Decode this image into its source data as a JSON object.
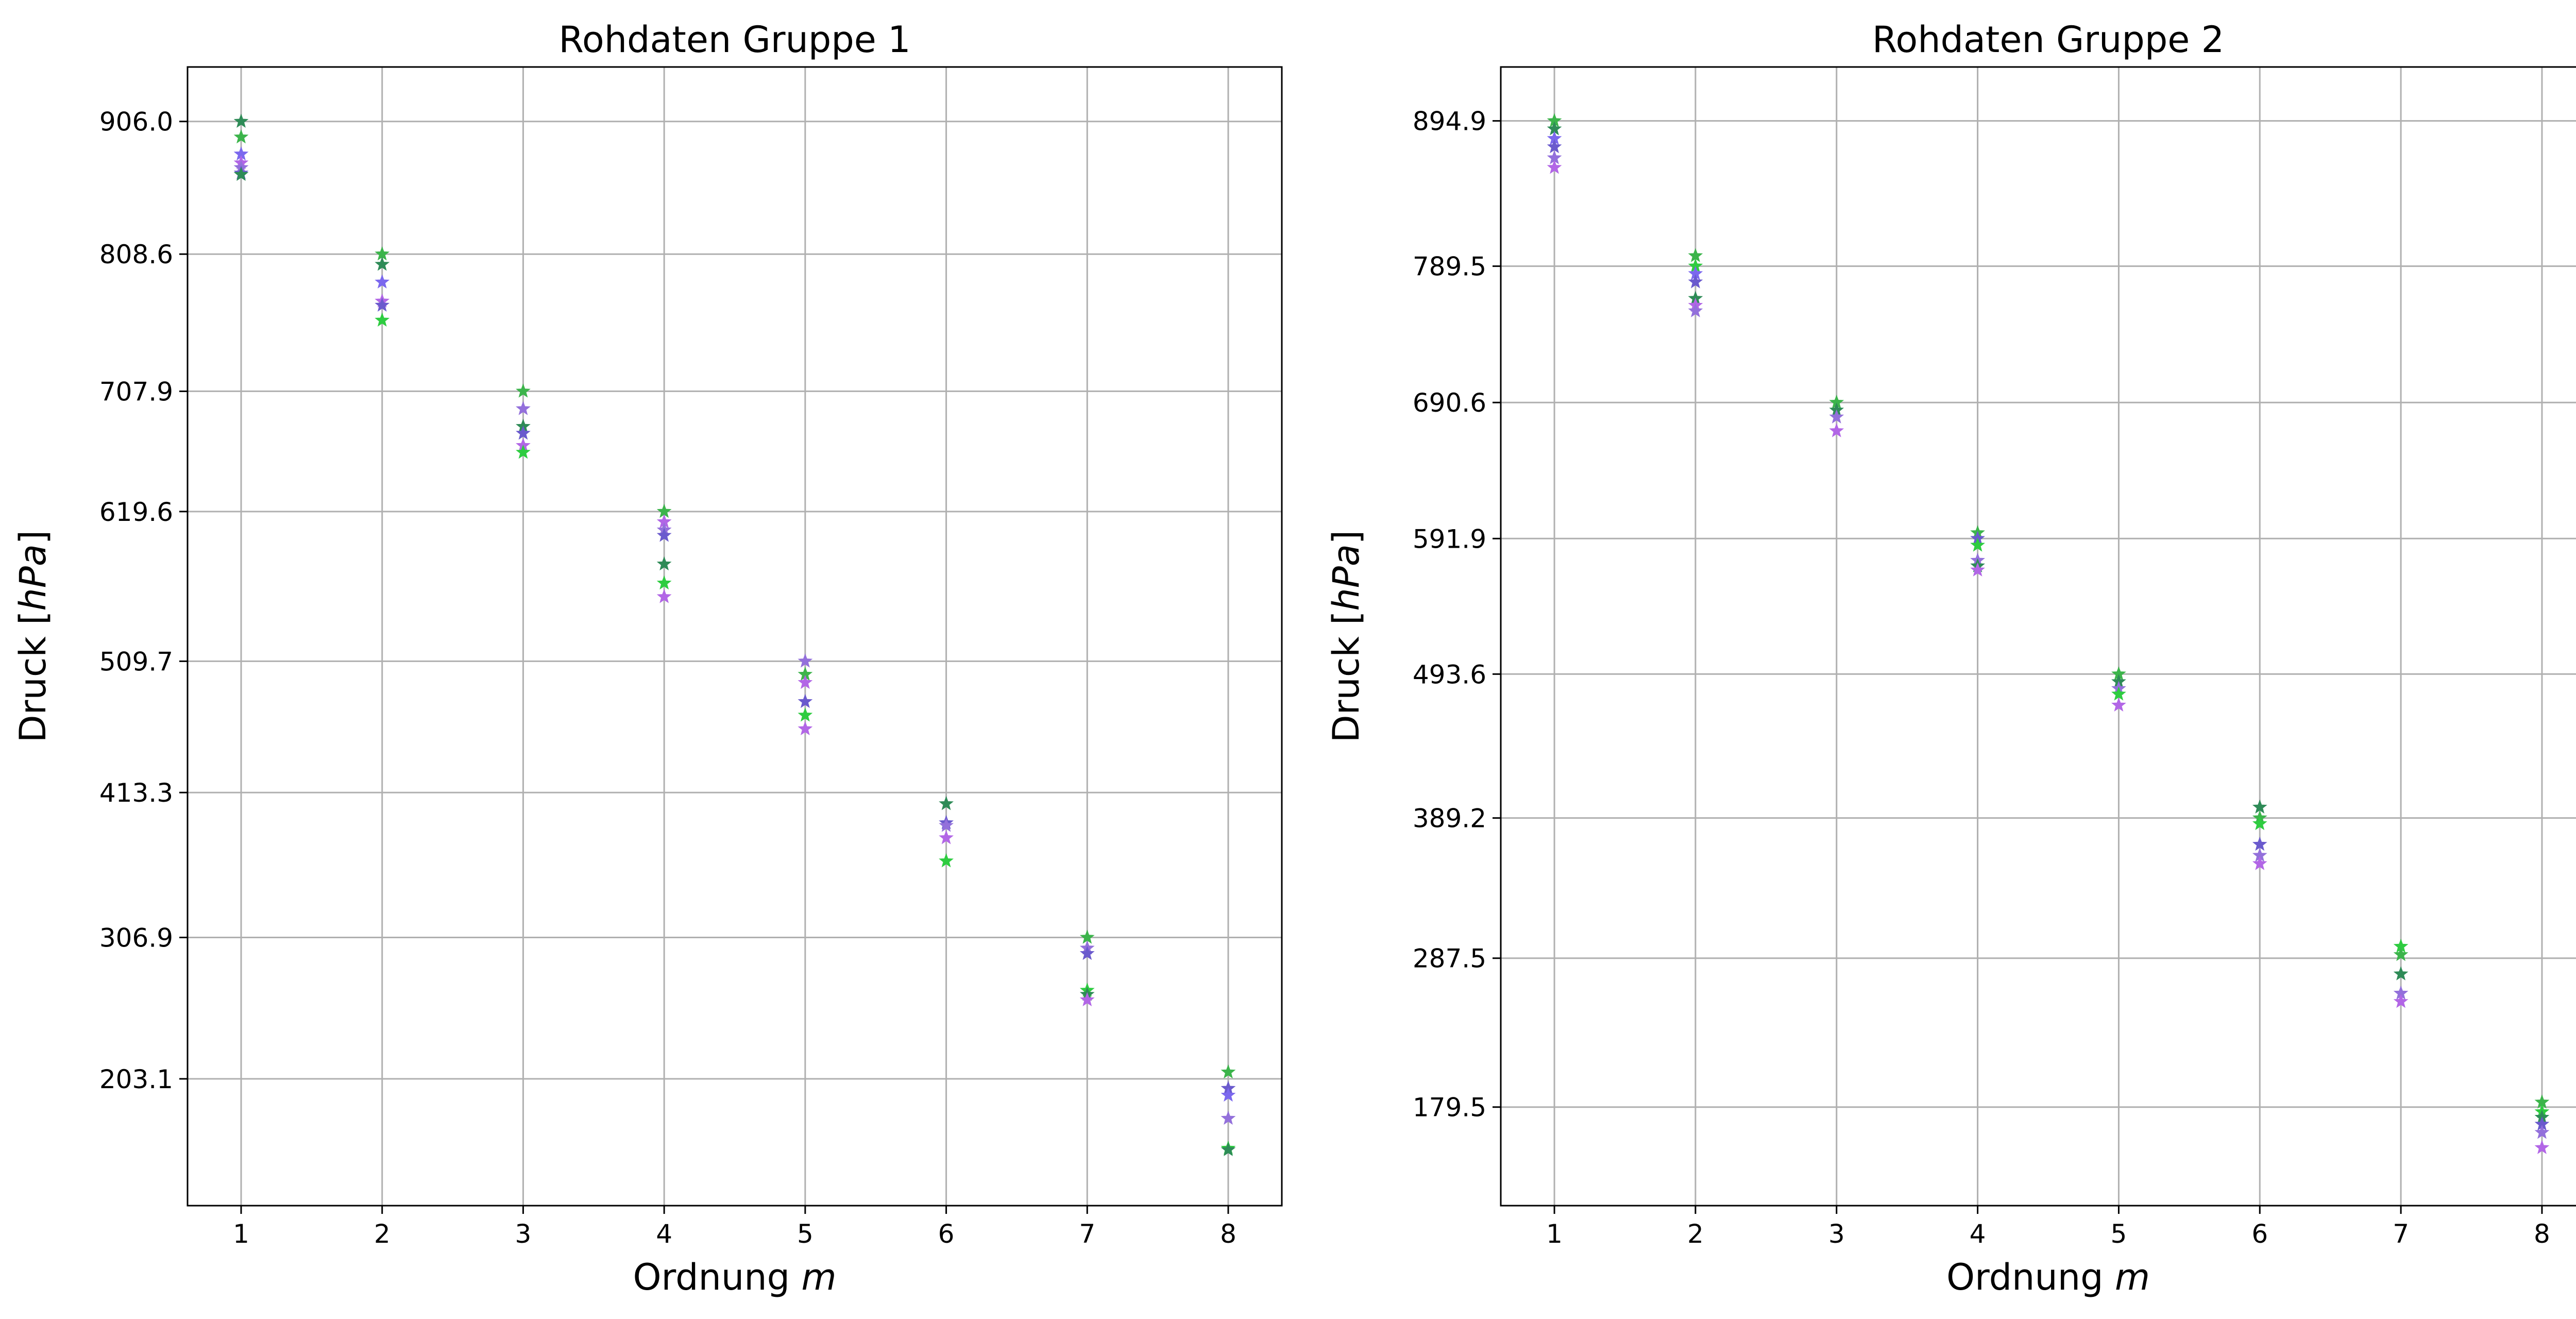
{
  "chart_data": [
    {
      "type": "scatter",
      "title": "Rohdaten Gruppe 1",
      "xlabel_text": "Ordnung",
      "xlabel_var": "m",
      "ylabel_text": "Druck [",
      "ylabel_unit": "hPa",
      "ylabel_close": "]",
      "x_ticks": [
        "1",
        "2",
        "3",
        "4",
        "5",
        "6",
        "7",
        "8"
      ],
      "y_ticks": [
        906.0,
        808.6,
        707.9,
        619.6,
        509.7,
        413.3,
        306.9,
        203.1
      ],
      "y_tick_labels": [
        "906.0",
        "808.6",
        "707.9",
        "619.6",
        "509.7",
        "413.3",
        "306.9",
        "203.1"
      ],
      "xlim": [
        0.62,
        8.38
      ],
      "ylim": [
        110,
        946
      ],
      "grid": true,
      "marker": "star",
      "points": [
        {
          "x": 1,
          "y": 906.0,
          "color": "#2e8b57"
        },
        {
          "x": 1,
          "y": 894.5,
          "color": "#3cb44b"
        },
        {
          "x": 1,
          "y": 882.0,
          "color": "#7b68ee"
        },
        {
          "x": 1,
          "y": 875.5,
          "color": "#b266e6"
        },
        {
          "x": 1,
          "y": 872.0,
          "color": "#9370db"
        },
        {
          "x": 1,
          "y": 868.0,
          "color": "#6a5acd"
        },
        {
          "x": 1,
          "y": 867.0,
          "color": "#2e8b57"
        },
        {
          "x": 2,
          "y": 808.6,
          "color": "#3cb44b"
        },
        {
          "x": 2,
          "y": 801.0,
          "color": "#2e8b57"
        },
        {
          "x": 2,
          "y": 788.0,
          "color": "#7b68ee"
        },
        {
          "x": 2,
          "y": 774.0,
          "color": "#b266e6"
        },
        {
          "x": 2,
          "y": 771.0,
          "color": "#6a5acd"
        },
        {
          "x": 2,
          "y": 760.0,
          "color": "#2ecc40"
        },
        {
          "x": 3,
          "y": 707.9,
          "color": "#3cb44b"
        },
        {
          "x": 3,
          "y": 695.0,
          "color": "#9370db"
        },
        {
          "x": 3,
          "y": 682.0,
          "color": "#2e8b57"
        },
        {
          "x": 3,
          "y": 677.0,
          "color": "#6a5acd"
        },
        {
          "x": 3,
          "y": 668.0,
          "color": "#b266e6"
        },
        {
          "x": 3,
          "y": 663.0,
          "color": "#2ecc40"
        },
        {
          "x": 4,
          "y": 619.6,
          "color": "#3cb44b"
        },
        {
          "x": 4,
          "y": 612.0,
          "color": "#b266e6"
        },
        {
          "x": 4,
          "y": 606.0,
          "color": "#9370db"
        },
        {
          "x": 4,
          "y": 602.0,
          "color": "#6a5acd"
        },
        {
          "x": 4,
          "y": 581.0,
          "color": "#2e8b57"
        },
        {
          "x": 4,
          "y": 567.0,
          "color": "#2ecc40"
        },
        {
          "x": 4,
          "y": 557.0,
          "color": "#b266e6"
        },
        {
          "x": 5,
          "y": 509.7,
          "color": "#9370db"
        },
        {
          "x": 5,
          "y": 500.0,
          "color": "#3cb44b"
        },
        {
          "x": 5,
          "y": 494.0,
          "color": "#b266e6"
        },
        {
          "x": 5,
          "y": 480.0,
          "color": "#6a5acd"
        },
        {
          "x": 5,
          "y": 470.0,
          "color": "#2ecc40"
        },
        {
          "x": 5,
          "y": 460.0,
          "color": "#b266e6"
        },
        {
          "x": 6,
          "y": 405.0,
          "color": "#2e8b57"
        },
        {
          "x": 6,
          "y": 391.0,
          "color": "#6a5acd"
        },
        {
          "x": 6,
          "y": 389.0,
          "color": "#9370db"
        },
        {
          "x": 6,
          "y": 380.0,
          "color": "#b266e6"
        },
        {
          "x": 6,
          "y": 363.0,
          "color": "#2ecc40"
        },
        {
          "x": 7,
          "y": 306.9,
          "color": "#3cb44b"
        },
        {
          "x": 7,
          "y": 299.0,
          "color": "#9370db"
        },
        {
          "x": 7,
          "y": 295.0,
          "color": "#6a5acd"
        },
        {
          "x": 7,
          "y": 268.0,
          "color": "#2ecc40"
        },
        {
          "x": 7,
          "y": 265.0,
          "color": "#2e8b57"
        },
        {
          "x": 7,
          "y": 261.0,
          "color": "#b266e6"
        },
        {
          "x": 8,
          "y": 208.0,
          "color": "#3cb44b"
        },
        {
          "x": 8,
          "y": 196.0,
          "color": "#6a5acd"
        },
        {
          "x": 8,
          "y": 191.0,
          "color": "#7b68ee"
        },
        {
          "x": 8,
          "y": 174.0,
          "color": "#9370db"
        },
        {
          "x": 8,
          "y": 152.0,
          "color": "#2ecc40"
        },
        {
          "x": 8,
          "y": 151.0,
          "color": "#2e8b57"
        }
      ]
    },
    {
      "type": "scatter",
      "title": "Rohdaten Gruppe 2",
      "xlabel_text": "Ordnung",
      "xlabel_var": "m",
      "ylabel_text": "Druck [",
      "ylabel_unit": "hPa",
      "ylabel_close": "]",
      "x_ticks": [
        "1",
        "2",
        "3",
        "4",
        "5",
        "6",
        "7",
        "8"
      ],
      "y_ticks": [
        894.9,
        789.5,
        690.6,
        591.9,
        493.6,
        389.2,
        287.5,
        179.5
      ],
      "y_tick_labels": [
        "894.9",
        "789.5",
        "690.6",
        "591.9",
        "493.6",
        "389.2",
        "287.5",
        "179.5"
      ],
      "xlim": [
        0.62,
        8.38
      ],
      "ylim": [
        108,
        934
      ],
      "grid": true,
      "marker": "star",
      "points": [
        {
          "x": 1,
          "y": 894.9,
          "color": "#3cb44b"
        },
        {
          "x": 1,
          "y": 889.0,
          "color": "#2e8b57"
        },
        {
          "x": 1,
          "y": 882.0,
          "color": "#7b68ee"
        },
        {
          "x": 1,
          "y": 876.0,
          "color": "#6a5acd"
        },
        {
          "x": 1,
          "y": 868.0,
          "color": "#9370db"
        },
        {
          "x": 1,
          "y": 861.0,
          "color": "#b266e6"
        },
        {
          "x": 2,
          "y": 797.0,
          "color": "#3cb44b"
        },
        {
          "x": 2,
          "y": 789.5,
          "color": "#2ecc40"
        },
        {
          "x": 2,
          "y": 784.0,
          "color": "#7b68ee"
        },
        {
          "x": 2,
          "y": 778.0,
          "color": "#6a5acd"
        },
        {
          "x": 2,
          "y": 766.0,
          "color": "#2e8b57"
        },
        {
          "x": 2,
          "y": 761.0,
          "color": "#b266e6"
        },
        {
          "x": 2,
          "y": 757.0,
          "color": "#9370db"
        },
        {
          "x": 3,
          "y": 690.6,
          "color": "#3cb44b"
        },
        {
          "x": 3,
          "y": 685.0,
          "color": "#2e8b57"
        },
        {
          "x": 3,
          "y": 680.0,
          "color": "#9370db"
        },
        {
          "x": 3,
          "y": 670.0,
          "color": "#b266e6"
        },
        {
          "x": 4,
          "y": 596.0,
          "color": "#3cb44b"
        },
        {
          "x": 4,
          "y": 591.9,
          "color": "#6a5acd"
        },
        {
          "x": 4,
          "y": 587.0,
          "color": "#2ecc40"
        },
        {
          "x": 4,
          "y": 576.0,
          "color": "#9370db"
        },
        {
          "x": 4,
          "y": 572.0,
          "color": "#2e8b57"
        },
        {
          "x": 4,
          "y": 569.0,
          "color": "#b266e6"
        },
        {
          "x": 5,
          "y": 493.6,
          "color": "#3cb44b"
        },
        {
          "x": 5,
          "y": 488.0,
          "color": "#2e8b57"
        },
        {
          "x": 5,
          "y": 483.0,
          "color": "#9370db"
        },
        {
          "x": 5,
          "y": 479.0,
          "color": "#2ecc40"
        },
        {
          "x": 5,
          "y": 471.0,
          "color": "#b266e6"
        },
        {
          "x": 6,
          "y": 397.0,
          "color": "#2e8b57"
        },
        {
          "x": 6,
          "y": 389.2,
          "color": "#3cb44b"
        },
        {
          "x": 6,
          "y": 385.0,
          "color": "#2ecc40"
        },
        {
          "x": 6,
          "y": 370.0,
          "color": "#6a5acd"
        },
        {
          "x": 6,
          "y": 362.0,
          "color": "#9370db"
        },
        {
          "x": 6,
          "y": 356.0,
          "color": "#b266e6"
        },
        {
          "x": 7,
          "y": 296.0,
          "color": "#2ecc40"
        },
        {
          "x": 7,
          "y": 290.0,
          "color": "#3cb44b"
        },
        {
          "x": 7,
          "y": 276.0,
          "color": "#2e8b57"
        },
        {
          "x": 7,
          "y": 262.0,
          "color": "#9370db"
        },
        {
          "x": 7,
          "y": 256.0,
          "color": "#b266e6"
        },
        {
          "x": 8,
          "y": 183.0,
          "color": "#3cb44b"
        },
        {
          "x": 8,
          "y": 176.0,
          "color": "#2ecc40"
        },
        {
          "x": 8,
          "y": 172.0,
          "color": "#2e8b57"
        },
        {
          "x": 8,
          "y": 167.0,
          "color": "#6a5acd"
        },
        {
          "x": 8,
          "y": 161.0,
          "color": "#9370db"
        },
        {
          "x": 8,
          "y": 150.0,
          "color": "#b266e6"
        }
      ]
    }
  ]
}
